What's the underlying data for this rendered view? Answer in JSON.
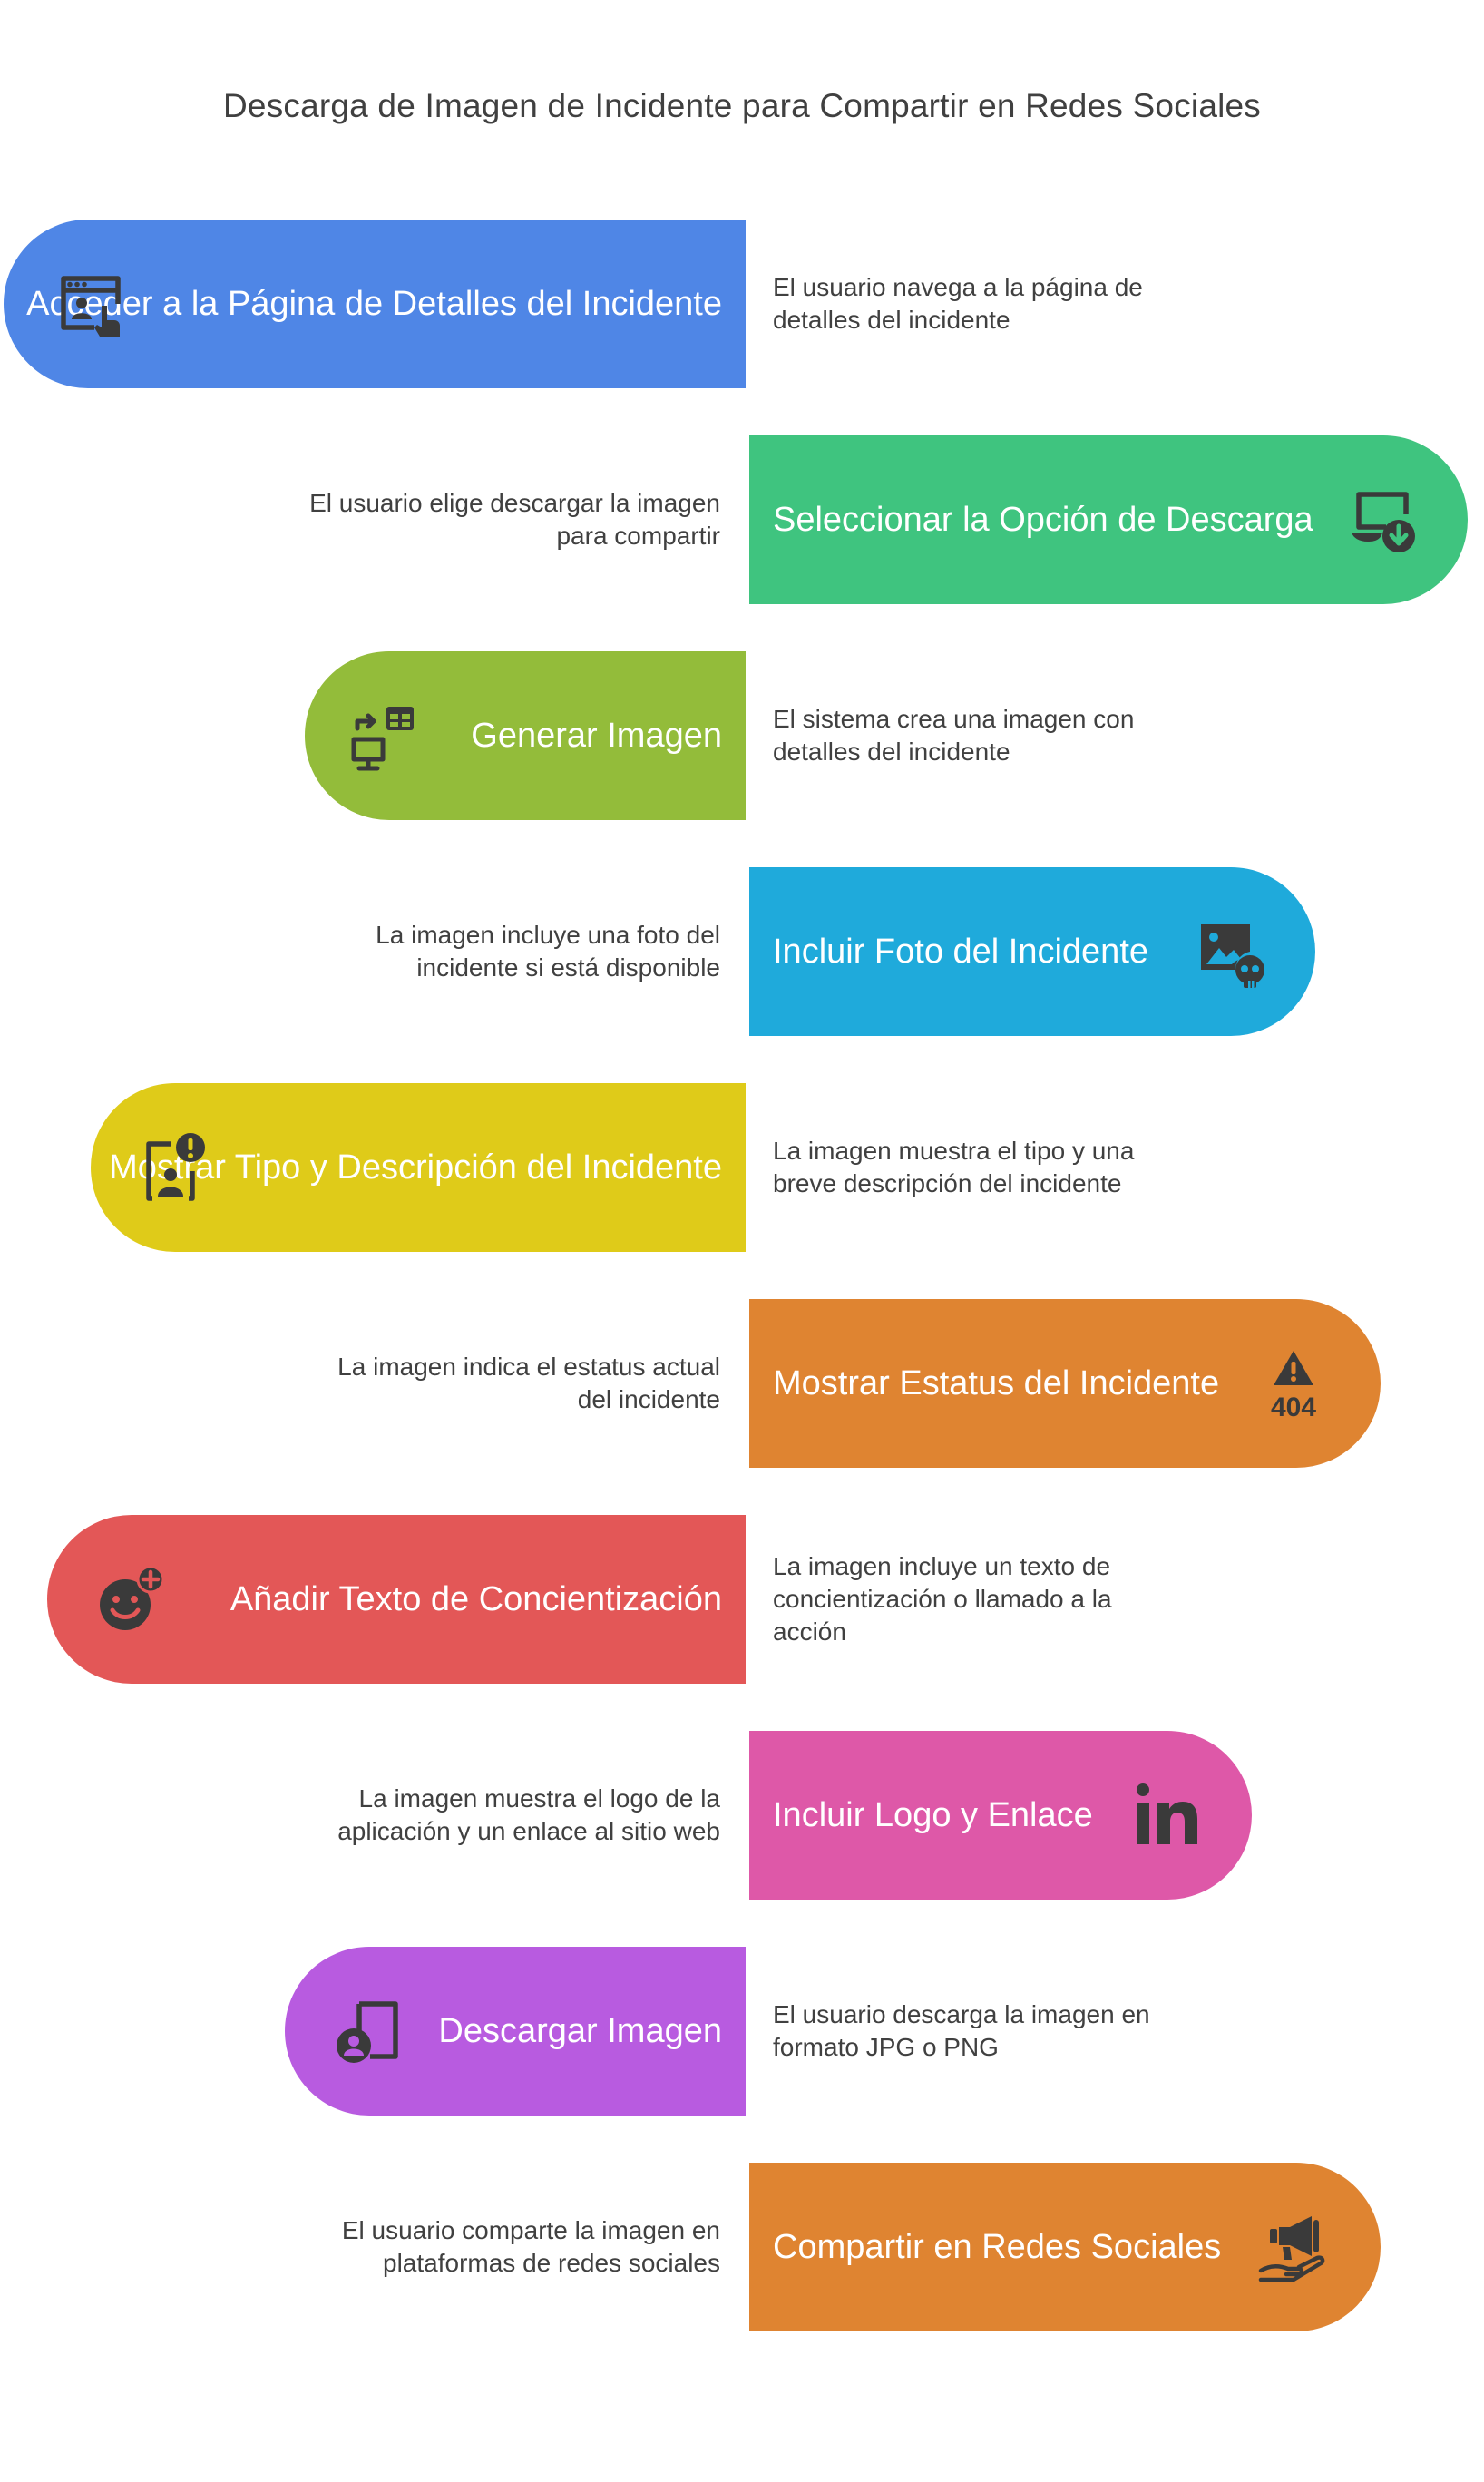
{
  "title": "Descarga de Imagen de Incidente para Compartir en Redes Sociales",
  "steps": [
    {
      "label": "Acceder a la Página de Detalles del Incidente",
      "description": "El usuario navega a la página de detalles del incidente",
      "color": "#4F86E6",
      "icon": "browser-user-cursor-icon"
    },
    {
      "label": "Seleccionar la Opción de Descarga",
      "description": "El usuario elige descargar la imagen para compartir",
      "color": "#3FC47F",
      "icon": "device-download-icon"
    },
    {
      "label": "Generar Imagen",
      "description": "El sistema crea una imagen con detalles del incidente",
      "color": "#93BC3A",
      "icon": "data-transfer-icon"
    },
    {
      "label": "Incluir Foto del Incidente",
      "description": "La imagen incluye una foto del incidente si está disponible",
      "color": "#1FAADB",
      "icon": "image-skull-icon"
    },
    {
      "label": "Mostrar Tipo y Descripción del Incidente",
      "description": "La imagen muestra el tipo y una breve descripción del incidente",
      "color": "#DFCB19",
      "icon": "user-alert-icon"
    },
    {
      "label": "Mostrar Estatus del Incidente",
      "description": "La imagen indica el estatus actual del incidente",
      "color": "#DF8431",
      "icon": "warning-404-icon"
    },
    {
      "label": "Añadir Texto de Concientización",
      "description": "La imagen incluye un texto de concientización o llamado a la acción",
      "color": "#E35757",
      "icon": "smiley-plus-icon"
    },
    {
      "label": "Incluir Logo y Enlace",
      "description": "La imagen muestra el logo de la aplicación y un enlace al sitio web",
      "color": "#DE58A8",
      "icon": "linkedin-icon"
    },
    {
      "label": "Descargar Imagen",
      "description": "El usuario descarga la imagen en formato JPG o PNG",
      "color": "#B85BE0",
      "icon": "user-frame-icon"
    },
    {
      "label": "Compartir en Redes Sociales",
      "description": "El usuario comparte la imagen en plataformas de redes sociales",
      "color": "#DF8431",
      "icon": "megaphone-hand-icon"
    }
  ]
}
